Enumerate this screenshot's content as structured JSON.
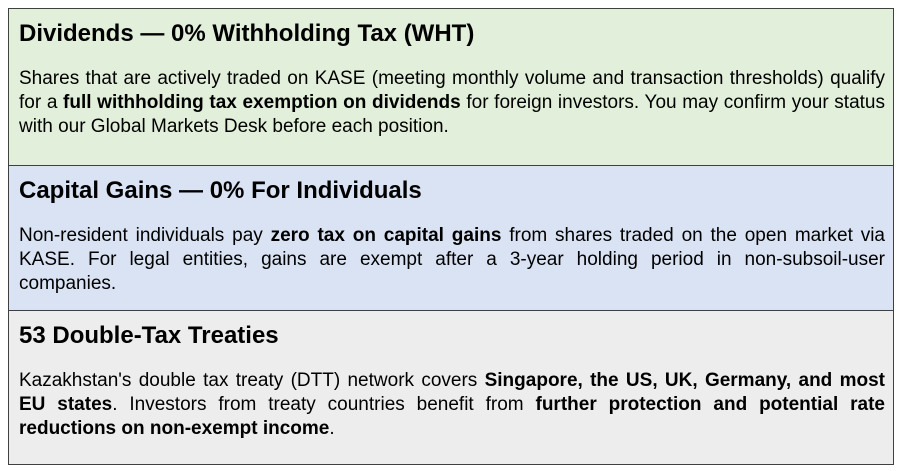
{
  "panels": [
    {
      "title": "Dividends — 0% Withholding Tax (WHT)",
      "body": [
        "Shares that are actively traded on KASE (meeting monthly volume and transaction thresholds) qualify for a ",
        "full withholding tax exemption on dividends",
        " for foreign investors. You may confirm your status with our Global Markets Desk before each position."
      ]
    },
    {
      "title": "Capital Gains — 0% For Individuals",
      "body": [
        "Non-resident individuals pay ",
        "zero tax on capital gains",
        " from shares traded on the open market via KASE. For legal entities, gains are exempt after a 3-year holding period in non-subsoil-user companies."
      ]
    },
    {
      "title": "53 Double-Tax Treaties",
      "body": [
        "Kazakhstan's double tax treaty (DTT) network covers ",
        "Singapore, the US, UK, Germany, and most EU states",
        ". Investors from treaty countries benefit from ",
        "further protection and potential rate reductions on non-exempt income",
        "."
      ]
    }
  ]
}
